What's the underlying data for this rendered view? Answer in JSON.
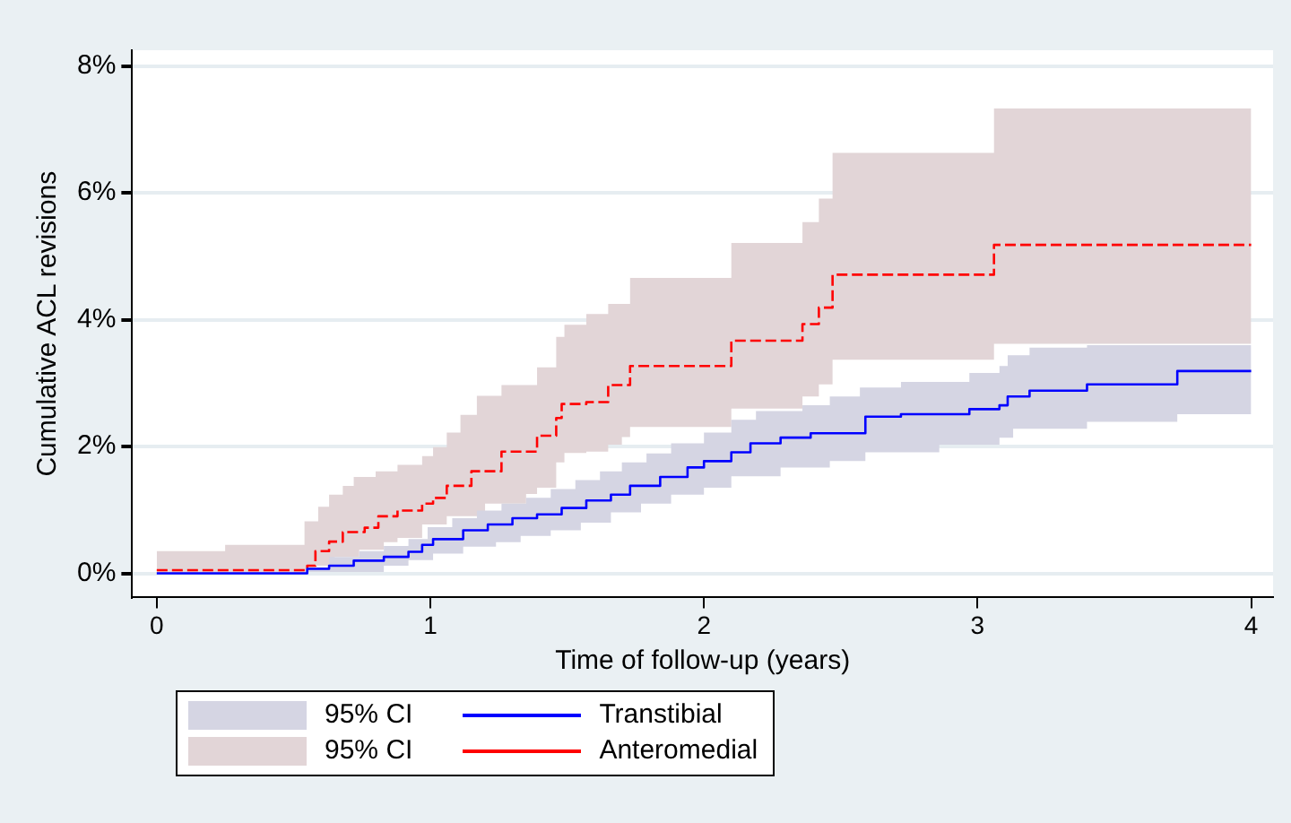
{
  "chart_data": {
    "type": "step",
    "xlabel": "Time of follow-up (years)",
    "ylabel": "Cumulative ACL revisions",
    "xlim": [
      -0.09,
      4.08
    ],
    "xticks": [
      0,
      1,
      2,
      3,
      4
    ],
    "ylim": [
      -0.38,
      8.25
    ],
    "yticks": [
      {
        "value": 0,
        "label": "0%"
      },
      {
        "value": 2,
        "label": "2%"
      },
      {
        "value": 4,
        "label": "4%"
      },
      {
        "value": 6,
        "label": "6%"
      },
      {
        "value": 8,
        "label": "8%"
      }
    ],
    "grid": "y",
    "legend": "bottom left",
    "marker": "none",
    "annotations": [
      "95% CI",
      "95% CI"
    ],
    "series": [
      {
        "name": "Transtibial",
        "color": "#0000ff",
        "line_style": "solid",
        "x": [
          0,
          0.55,
          0.63,
          0.72,
          0.74,
          0.83,
          0.92,
          0.97,
          0.99,
          1.01,
          1.08,
          1.12,
          1.17,
          1.21,
          1.24,
          1.26,
          1.3,
          1.33,
          1.35,
          1.39,
          1.44,
          1.48,
          1.53,
          1.55,
          1.57,
          1.62,
          1.66,
          1.7,
          1.73,
          1.77,
          1.79,
          1.84,
          1.88,
          1.94,
          2.0,
          2.1,
          2.17,
          2.19,
          2.28,
          2.36,
          2.39,
          2.46,
          2.57,
          2.59,
          2.72,
          2.86,
          2.97,
          3.08,
          3.11,
          3.13,
          3.19,
          3.4,
          3.73,
          4.0
        ],
        "values": [
          0,
          0.07,
          0.12,
          0.2,
          0.2,
          0.26,
          0.34,
          0.45,
          0.45,
          0.54,
          0.54,
          0.68,
          0.68,
          0.77,
          0.77,
          0.77,
          0.87,
          0.87,
          0.87,
          0.93,
          0.93,
          1.03,
          1.03,
          1.03,
          1.15,
          1.15,
          1.24,
          1.24,
          1.38,
          1.38,
          1.38,
          1.52,
          1.52,
          1.67,
          1.77,
          1.91,
          2.05,
          2.05,
          2.14,
          2.14,
          2.21,
          2.21,
          2.21,
          2.47,
          2.51,
          2.51,
          2.59,
          2.65,
          2.79,
          2.79,
          2.88,
          2.98,
          3.19,
          3.19
        ],
        "upper": [
          0,
          0.1,
          0.26,
          0.26,
          0.35,
          0.43,
          0.54,
          0.54,
          0.73,
          0.73,
          0.87,
          0.87,
          0.99,
          0.99,
          0.99,
          1.1,
          1.1,
          1.1,
          1.19,
          1.19,
          1.33,
          1.33,
          1.47,
          1.47,
          1.47,
          1.61,
          1.61,
          1.75,
          1.75,
          1.75,
          1.89,
          1.89,
          2.05,
          2.05,
          2.22,
          2.42,
          2.42,
          2.56,
          2.56,
          2.65,
          2.65,
          2.79,
          2.93,
          2.93,
          3.02,
          3.02,
          3.16,
          3.27,
          3.44,
          3.44,
          3.56,
          3.6,
          3.6,
          3.6
        ],
        "lower": [
          0,
          0.02,
          0.02,
          0.02,
          0.02,
          0.12,
          0.21,
          0.21,
          0.21,
          0.31,
          0.31,
          0.42,
          0.42,
          0.42,
          0.49,
          0.49,
          0.49,
          0.59,
          0.59,
          0.59,
          0.68,
          0.68,
          0.68,
          0.8,
          0.8,
          0.8,
          0.96,
          0.96,
          0.96,
          1.1,
          1.1,
          1.1,
          1.24,
          1.24,
          1.35,
          1.53,
          1.53,
          1.53,
          1.67,
          1.67,
          1.67,
          1.77,
          1.77,
          1.91,
          1.91,
          2.03,
          2.03,
          2.14,
          2.14,
          2.28,
          2.28,
          2.39,
          2.51,
          2.51
        ]
      },
      {
        "name": "Anteromedial",
        "color": "#ff0000",
        "line_style": "dashed",
        "x": [
          0,
          0.25,
          0.54,
          0.55,
          0.58,
          0.59,
          0.63,
          0.65,
          0.68,
          0.72,
          0.74,
          0.76,
          0.8,
          0.81,
          0.83,
          0.88,
          0.97,
          1.01,
          1.06,
          1.11,
          1.15,
          1.17,
          1.2,
          1.26,
          1.35,
          1.39,
          1.46,
          1.48,
          1.49,
          1.57,
          1.65,
          1.7,
          1.73,
          2.1,
          2.36,
          2.42,
          2.47,
          3.06,
          4.0
        ],
        "values": [
          0.05,
          0.05,
          0.05,
          0.12,
          0.35,
          0.35,
          0.5,
          0.5,
          0.65,
          0.65,
          0.65,
          0.72,
          0.72,
          0.9,
          0.9,
          0.99,
          1.1,
          1.19,
          1.38,
          1.38,
          1.61,
          1.61,
          1.61,
          1.92,
          1.92,
          2.17,
          2.45,
          2.67,
          2.67,
          2.7,
          2.97,
          2.97,
          3.27,
          3.67,
          3.93,
          4.19,
          4.71,
          5.18,
          5.18
        ],
        "upper": [
          0.35,
          0.45,
          0.82,
          0.82,
          0.82,
          1.05,
          1.24,
          1.24,
          1.38,
          1.52,
          1.52,
          1.52,
          1.61,
          1.61,
          1.61,
          1.71,
          1.85,
          1.99,
          2.22,
          2.5,
          2.5,
          2.8,
          2.8,
          2.97,
          2.97,
          3.25,
          3.73,
          3.73,
          3.92,
          4.09,
          4.25,
          4.25,
          4.66,
          5.21,
          5.54,
          5.91,
          6.63,
          7.33,
          7.33
        ],
        "lower": [
          0,
          0,
          0,
          0.12,
          0.12,
          0.12,
          0.12,
          0.26,
          0.26,
          0.26,
          0.37,
          0.37,
          0.37,
          0.37,
          0.49,
          0.56,
          0.77,
          0.77,
          0.9,
          0.9,
          0.9,
          0.9,
          1.1,
          1.1,
          1.25,
          1.35,
          1.75,
          1.75,
          1.9,
          1.92,
          2.03,
          2.15,
          2.31,
          2.6,
          2.79,
          2.98,
          3.37,
          3.62,
          3.62
        ]
      }
    ]
  }
}
